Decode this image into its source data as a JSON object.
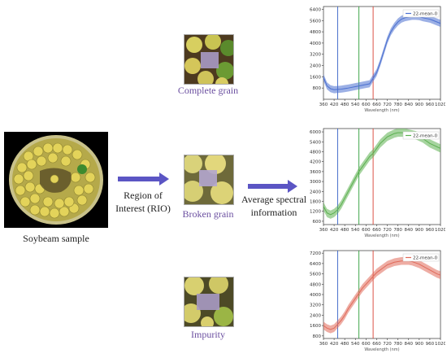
{
  "labels": {
    "sample": "Soybeam sample",
    "roi": [
      "Region of",
      "Interest (RIO)"
    ],
    "average": [
      "Average spectral",
      "information"
    ],
    "complete": "Complete grain",
    "broken": "Broken grain",
    "impurity": "Impurity"
  },
  "colors": {
    "arrow": "#5b55c4",
    "caption_purple": "#6b4fa0",
    "line_blue": "#3a64c8",
    "line_green": "#2e9d3a",
    "line_red": "#d84032"
  },
  "chart_data": [
    {
      "type": "line",
      "series": [
        {
          "name": "22-mean-0",
          "color": "#4a6fd0",
          "x": [
            360,
            380,
            400,
            420,
            440,
            460,
            480,
            500,
            520,
            540,
            560,
            580,
            600,
            620,
            640,
            660,
            680,
            700,
            720,
            740,
            760,
            780,
            800,
            820,
            840,
            860,
            880,
            900,
            920,
            940,
            960,
            980,
            1000,
            1020
          ],
          "values": [
            1550,
            950,
            750,
            680,
            700,
            720,
            760,
            800,
            850,
            900,
            950,
            1000,
            1050,
            1100,
            1500,
            1900,
            2600,
            3400,
            4200,
            4800,
            5200,
            5500,
            5700,
            5800,
            5850,
            5900,
            5900,
            5880,
            5800,
            5750,
            5700,
            5600,
            5500,
            5400
          ]
        }
      ],
      "xlabel": "Wavelength (nm)",
      "xticks": [
        360,
        420,
        480,
        540,
        600,
        660,
        720,
        780,
        840,
        900,
        960,
        1020
      ],
      "ylim": [
        0,
        6600
      ],
      "yticks": [
        800,
        1600,
        2400,
        3200,
        4000,
        4800,
        5600,
        6400
      ],
      "vlines": [
        {
          "x": 440,
          "color": "#3a64c8"
        },
        {
          "x": 560,
          "color": "#2e9d3a"
        },
        {
          "x": 640,
          "color": "#d84032"
        }
      ],
      "band": 250
    },
    {
      "type": "line",
      "series": [
        {
          "name": "22-mean-0",
          "color": "#5cb050",
          "x": [
            360,
            380,
            400,
            420,
            440,
            460,
            480,
            500,
            520,
            540,
            560,
            580,
            600,
            620,
            640,
            660,
            680,
            700,
            720,
            740,
            760,
            780,
            800,
            820,
            840,
            860,
            880,
            900,
            920,
            940,
            960,
            980,
            1000,
            1020
          ],
          "values": [
            1500,
            1100,
            1000,
            1100,
            1300,
            1600,
            2000,
            2400,
            2800,
            3200,
            3600,
            3900,
            4200,
            4500,
            4700,
            5000,
            5300,
            5500,
            5700,
            5800,
            5900,
            5950,
            5950,
            5950,
            5900,
            5850,
            5800,
            5700,
            5600,
            5450,
            5300,
            5200,
            5100,
            5000
          ]
        }
      ],
      "xlabel": "Wavelength (nm)",
      "xticks": [
        360,
        420,
        480,
        540,
        600,
        660,
        720,
        780,
        840,
        900,
        960,
        1020
      ],
      "ylim": [
        400,
        6200
      ],
      "yticks": [
        600,
        1200,
        1800,
        2400,
        3000,
        3600,
        4200,
        4800,
        5400,
        6000
      ],
      "vlines": [
        {
          "x": 440,
          "color": "#3a64c8"
        },
        {
          "x": 560,
          "color": "#2e9d3a"
        },
        {
          "x": 640,
          "color": "#d84032"
        }
      ],
      "band": 250
    },
    {
      "type": "line",
      "series": [
        {
          "name": "22-mean-0",
          "color": "#e06a5a",
          "x": [
            360,
            380,
            400,
            420,
            440,
            460,
            480,
            500,
            520,
            540,
            560,
            580,
            600,
            620,
            640,
            660,
            680,
            700,
            720,
            740,
            760,
            780,
            800,
            820,
            840,
            860,
            880,
            900,
            920,
            940,
            960,
            980,
            1000,
            1020
          ],
          "values": [
            1600,
            1400,
            1300,
            1400,
            1700,
            2000,
            2400,
            2900,
            3300,
            3700,
            4100,
            4500,
            4800,
            5100,
            5400,
            5700,
            5900,
            6100,
            6300,
            6400,
            6500,
            6550,
            6600,
            6600,
            6600,
            6550,
            6450,
            6350,
            6200,
            6050,
            5900,
            5750,
            5600,
            5500
          ]
        }
      ],
      "xlabel": "Wavelength (nm)",
      "xticks": [
        360,
        420,
        480,
        540,
        600,
        660,
        720,
        780,
        840,
        900,
        960,
        1020
      ],
      "ylim": [
        600,
        7400
      ],
      "yticks": [
        800,
        1600,
        2400,
        3200,
        4000,
        4800,
        5600,
        6400,
        7200
      ],
      "vlines": [
        {
          "x": 440,
          "color": "#3a64c8"
        },
        {
          "x": 560,
          "color": "#2e9d3a"
        },
        {
          "x": 640,
          "color": "#d84032"
        }
      ],
      "band": 300
    }
  ]
}
